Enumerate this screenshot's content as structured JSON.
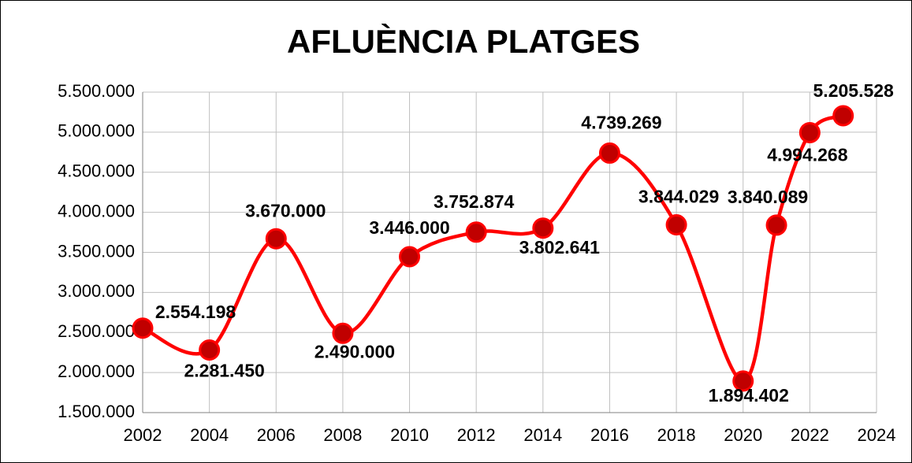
{
  "chart_data": {
    "type": "line",
    "title": "AFLUÈNCIA PLATGES",
    "x": [
      2002,
      2004,
      2006,
      2008,
      2010,
      2012,
      2014,
      2016,
      2018,
      2020,
      2021,
      2022,
      2023
    ],
    "series": [
      {
        "name": "AFLUÈNCIA PLATGES",
        "color": "#ff0000",
        "marker_color": "#c00000",
        "values": [
          2554198,
          2281450,
          3670000,
          2490000,
          3446000,
          3752874,
          3802641,
          4739269,
          3844029,
          1894402,
          3840089,
          4994268,
          5205528
        ],
        "value_labels": [
          "2.554.198",
          "2.281.450",
          "3.670.000",
          "2.490.000",
          "3.446.000",
          "3.752.874",
          "3.802.641",
          "4.739.269",
          "3.844.029",
          "1.894.402",
          "3.840.089",
          "4.994.268",
          "5.205.528"
        ]
      }
    ],
    "xlim": [
      2002,
      2024
    ],
    "xticks": [
      2002,
      2004,
      2006,
      2008,
      2010,
      2012,
      2014,
      2016,
      2018,
      2020,
      2022,
      2024
    ],
    "ylim": [
      1500000,
      5500000
    ],
    "yticks": [
      {
        "value": 1500000,
        "label": "1.500.000"
      },
      {
        "value": 2000000,
        "label": "2.000.000"
      },
      {
        "value": 2500000,
        "label": "2.500.000"
      },
      {
        "value": 3000000,
        "label": "3.000.000"
      },
      {
        "value": 3500000,
        "label": "3.500.000"
      },
      {
        "value": 4000000,
        "label": "4.000.000"
      },
      {
        "value": 4500000,
        "label": "4.500.000"
      },
      {
        "value": 5000000,
        "label": "5.000.000"
      },
      {
        "value": 5500000,
        "label": "5.500.000"
      }
    ],
    "grid": true
  }
}
